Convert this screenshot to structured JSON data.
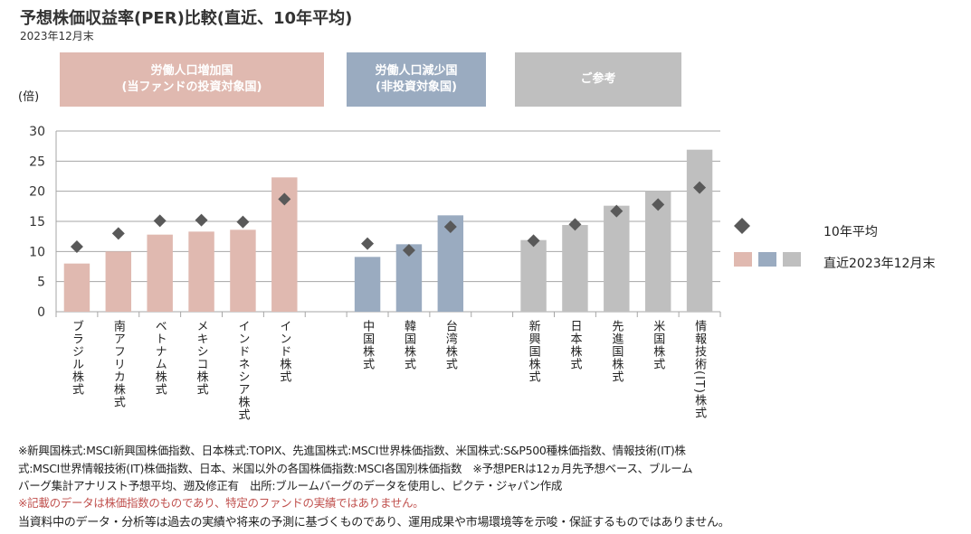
{
  "title": "予想株価収益率(PER)比較(直近、10年平均)",
  "subtitle": "2023年12月末",
  "groups": [
    {
      "line1": "労働人口増加国",
      "line2": "(当ファンドの投資対象国)",
      "color": "#e0b9b0"
    },
    {
      "line1": "労働人口減少国",
      "line2": "(非投資対象国)",
      "color": "#9aabc0"
    },
    {
      "line1": "ご参考",
      "line2": "",
      "color": "#bfbfbf"
    }
  ],
  "chart_data": {
    "type": "bar",
    "ylabel": "(倍)",
    "ylim": [
      0,
      30
    ],
    "yticks": [
      0,
      5,
      10,
      15,
      20,
      25,
      30
    ],
    "categories": [
      "ブラジル株式",
      "南アフリカ株式",
      "ベトナム株式",
      "メキシコ株式",
      "インドネシア株式",
      "インド株式",
      "中国株式",
      "韓国株式",
      "台湾株式",
      "新興国株式",
      "日本株式",
      "先進国株式",
      "米国株式",
      "情報技術(IT)株式"
    ],
    "category_group": [
      0,
      0,
      0,
      0,
      0,
      0,
      1,
      1,
      1,
      2,
      2,
      2,
      2,
      2
    ],
    "series": [
      {
        "name": "直近2023年12月末",
        "type": "bar",
        "values": [
          8.0,
          10.0,
          12.8,
          13.3,
          13.6,
          22.3,
          9.1,
          11.2,
          16.0,
          11.9,
          14.4,
          17.6,
          20.0,
          26.9
        ]
      },
      {
        "name": "10年平均",
        "type": "diamond",
        "color": "#595959",
        "values": [
          10.8,
          13.0,
          15.1,
          15.2,
          14.9,
          18.7,
          11.3,
          10.2,
          14.1,
          11.8,
          14.5,
          16.7,
          17.8,
          20.6
        ]
      }
    ],
    "legend": "right",
    "grid": true
  },
  "notes": [
    "※新興国株式:MSCI新興国株価指数、日本株式:TOPIX、先進国株式:MSCI世界株価指数、米国株式:S&P500種株価指数、情報技術(IT)株",
    "式:MSCI世界情報技術(IT)株価指数、日本、米国以外の各国株価指数:MSCI各国別株価指数　※予想PERは12ヵ月先予想ベース、ブルーム",
    "バーグ集計アナリスト予想平均、遡及修正有　出所:ブルームバーグのデータを使用し、ピクテ・ジャパン作成"
  ],
  "warning": "※記載のデータは株価指数のものであり、特定のファンドの実績ではありません。",
  "disclaimer": "当資料中のデータ・分析等は過去の実績や将来の予測に基づくものであり、運用成果や市場環境等を示唆・保証するものではありません。"
}
